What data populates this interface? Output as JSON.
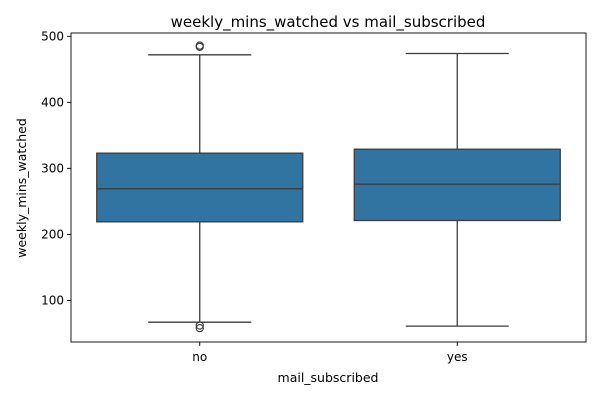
{
  "chart_data": {
    "type": "box",
    "title": "weekly_mins_watched vs mail_subscribed",
    "xlabel": "mail_subscribed",
    "ylabel": "weekly_mins_watched",
    "ylim": [
      37,
      505
    ],
    "yticks": [
      100,
      200,
      300,
      400,
      500
    ],
    "grid": false,
    "legend": "none",
    "colors": {
      "box_fill": "#3274a1",
      "line": "#3d3d3d",
      "axis": "#000000"
    },
    "categories": [
      "no",
      "yes"
    ],
    "boxes": [
      {
        "category": "no",
        "whisker_low": 67,
        "q1": 219,
        "median": 269,
        "q3": 323,
        "whisker_high": 472,
        "outliers": [
          484,
          486,
          62,
          58
        ]
      },
      {
        "category": "yes",
        "whisker_low": 61,
        "q1": 221,
        "median": 276,
        "q3": 329,
        "whisker_high": 474,
        "outliers": []
      }
    ]
  }
}
